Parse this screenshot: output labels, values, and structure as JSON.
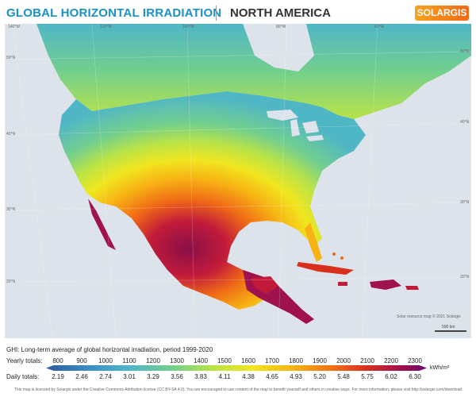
{
  "header": {
    "title_left": "GLOBAL HORIZONTAL IRRADIATION",
    "title_right": "NORTH AMERICA",
    "logo": "SOLARGIS"
  },
  "map": {
    "coords": {
      "lon_140": "140°W",
      "lon_120": "120°W",
      "lon_100": "100°W",
      "lon_80": "80°W",
      "lon_60": "60°W",
      "lat_50_left": "50°N",
      "lat_40_left": "40°N",
      "lat_30_left": "30°N",
      "lat_20_left": "20°N",
      "lat_50_right": "50°N",
      "lat_40_right": "40°N",
      "lat_30_right": "30°N",
      "lat_20_right": "20°N"
    },
    "credit": "Solar resource map © 2021 Solargis",
    "scale": "500 km"
  },
  "legend": {
    "description": "GHI: Long-term average of global horizontal irradiation, period 1999-2020",
    "yearly_label": "Yearly totals:",
    "daily_label": "Daily totals:",
    "yearly": [
      "800",
      "900",
      "1000",
      "1100",
      "1200",
      "1300",
      "1400",
      "1500",
      "1600",
      "1700",
      "1800",
      "1900",
      "2000",
      "2100",
      "2200",
      "2300"
    ],
    "daily": [
      "2.19",
      "2.46",
      "2.74",
      "3.01",
      "3.29",
      "3.56",
      "3.83",
      "4.11",
      "4.38",
      "4.65",
      "4.93",
      "5.20",
      "5.48",
      "5.75",
      "6.02",
      "6.30"
    ],
    "unit": "kWh/m²",
    "colors": [
      "#2b5d9e",
      "#3b91c7",
      "#4fb6c6",
      "#73cf8d",
      "#b9e347",
      "#f0e61f",
      "#f7b314",
      "#ef6a16",
      "#d9301d",
      "#a0124d",
      "#6a0b6a"
    ]
  },
  "footer": "This map is licensed by Solargis under the Creative Commons Attribution license (CC BY-SA 4.0). You are encouraged to use content of the map to benefit yourself and others in creative ways. For more information, please visit http://solargis.com/download"
}
